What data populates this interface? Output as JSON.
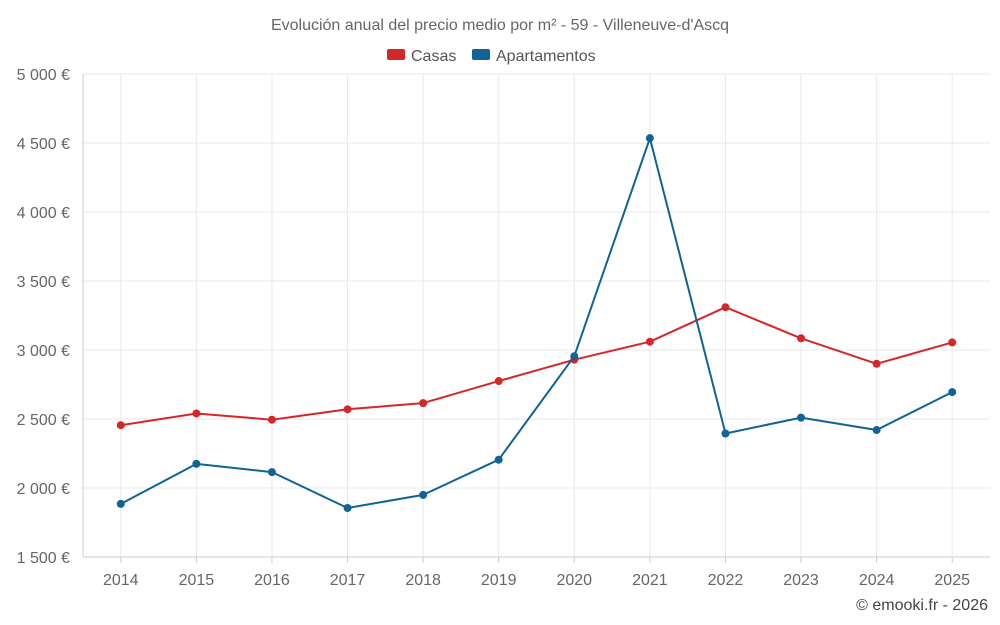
{
  "chart_data": {
    "type": "line",
    "title": "Evolución anual del precio medio por m² - 59 - Villeneuve-d'Ascq",
    "x": [
      "2014",
      "2015",
      "2016",
      "2017",
      "2018",
      "2019",
      "2020",
      "2021",
      "2022",
      "2023",
      "2024",
      "2025"
    ],
    "series": [
      {
        "name": "Casas",
        "color": "#d62728",
        "values": [
          2455,
          2540,
          2495,
          2570,
          2615,
          2775,
          2930,
          3060,
          3310,
          3085,
          2900,
          3055
        ]
      },
      {
        "name": "Apartamentos",
        "color": "#0f6396",
        "values": [
          1885,
          2175,
          2115,
          1855,
          1950,
          2205,
          2955,
          4535,
          2395,
          2510,
          2420,
          2695
        ]
      }
    ],
    "yticks": [
      1500,
      2000,
      2500,
      3000,
      3500,
      4000,
      4500,
      5000
    ],
    "ytick_labels": [
      "1 500 €",
      "2 000 €",
      "2 500 €",
      "3 000 €",
      "3 500 €",
      "4 000 €",
      "4 500 €",
      "5 000 €"
    ],
    "ylim": [
      1500,
      5000
    ],
    "xlabel": "",
    "ylabel": "",
    "grid": true,
    "legend_position": "top-center"
  },
  "credit": "© emooki.fr - 2026"
}
